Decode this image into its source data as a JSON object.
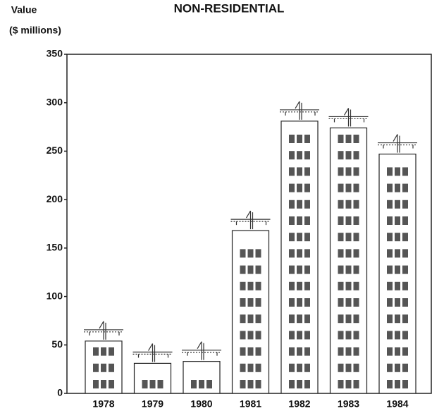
{
  "chart_data": {
    "type": "bar",
    "title": "NON-RESIDENTIAL",
    "ylabel": [
      "Value",
      "($ millions)"
    ],
    "categories": [
      "1978",
      "1979",
      "1980",
      "1981",
      "1982",
      "1983",
      "1984"
    ],
    "values": [
      54,
      31,
      33,
      168,
      281,
      274,
      247
    ],
    "color": "#ffffff",
    "ylim": [
      0,
      350
    ],
    "yticks": [
      0,
      50,
      100,
      150,
      200,
      250,
      300,
      350
    ]
  }
}
